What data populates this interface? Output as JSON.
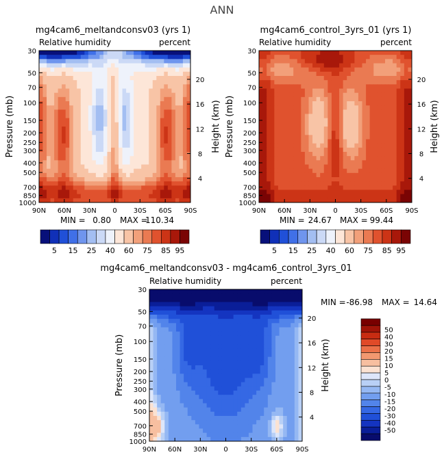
{
  "page_title": "ANN",
  "palettes": {
    "abs": [
      "#08107a",
      "#1030b8",
      "#2050d8",
      "#4070e8",
      "#6f95ee",
      "#a3bef2",
      "#cbd9f6",
      "#eef2fb",
      "#fde6d8",
      "#f8c4a6",
      "#f2a07a",
      "#ea7a52",
      "#e0522e",
      "#cc3416",
      "#a8180a",
      "#7a0404"
    ],
    "diff": [
      "#080c6c",
      "#0a1e98",
      "#1434c0",
      "#2050d8",
      "#3568e4",
      "#5284ea",
      "#729eef",
      "#95b8f3",
      "#b9d0f6",
      "#dde6fa",
      "#fbe2d2",
      "#f7bfa0",
      "#f29870",
      "#eb7048",
      "#e04a28",
      "#c82c12",
      "#a01408",
      "#780000"
    ]
  },
  "chart_data": [
    {
      "type": "heatmap",
      "title": "mg4cam6_meltandconsv03 (yrs 1)",
      "subtitle_left": "Relative humidity",
      "subtitle_right": "percent",
      "ylabel": "Pressure (mb)",
      "ylabel_right": "Height (km)",
      "x_ticks": [
        "90N",
        "60N",
        "30N",
        "0",
        "30S",
        "60S",
        "90S"
      ],
      "y_ticks": [
        "30",
        "50",
        "70",
        "100",
        "150",
        "200",
        "250",
        "300",
        "400",
        "500",
        "700",
        "850",
        "1000"
      ],
      "height_ticks": [
        "20",
        "16",
        "12",
        "8",
        "4"
      ],
      "stats": {
        "min_label": "MIN =",
        "min": "0.80",
        "max_label": "MAX =",
        "max": "110.34"
      },
      "colorbar_labels": [
        "5",
        "15",
        "25",
        "40",
        "60",
        "75",
        "85",
        "95"
      ],
      "legend_orientation": "horizontal",
      "palette": "abs",
      "levels": [
        0,
        5,
        10,
        15,
        20,
        25,
        30,
        40,
        50,
        60,
        70,
        75,
        80,
        85,
        90,
        95
      ]
    },
    {
      "type": "heatmap",
      "title": "mg4cam6_control_3yrs_01 (yrs 1)",
      "subtitle_left": "Relative humidity",
      "subtitle_right": "percent",
      "ylabel": "Pressure (mb)",
      "ylabel_right": "Height (km)",
      "x_ticks": [
        "90N",
        "60N",
        "30N",
        "0",
        "30S",
        "60S",
        "90S"
      ],
      "y_ticks": [
        "30",
        "50",
        "70",
        "100",
        "150",
        "200",
        "250",
        "300",
        "400",
        "500",
        "700",
        "850",
        "1000"
      ],
      "height_ticks": [
        "20",
        "16",
        "12",
        "8",
        "4"
      ],
      "stats": {
        "min_label": "MIN =",
        "min": "24.67",
        "max_label": "MAX =",
        "max": "99.44"
      },
      "colorbar_labels": [
        "5",
        "15",
        "25",
        "40",
        "60",
        "75",
        "85",
        "95"
      ],
      "legend_orientation": "horizontal",
      "palette": "abs",
      "levels": [
        0,
        5,
        10,
        15,
        20,
        25,
        30,
        40,
        50,
        60,
        70,
        75,
        80,
        85,
        90,
        95
      ]
    },
    {
      "type": "heatmap",
      "title": "mg4cam6_meltandconsv03 - mg4cam6_control_3yrs_01",
      "subtitle_left": "Relative humidity",
      "subtitle_right": "percent",
      "ylabel": "Pressure (mb)",
      "ylabel_right": "Height (km)",
      "x_ticks": [
        "90N",
        "60N",
        "30N",
        "0",
        "30S",
        "60S",
        "90S"
      ],
      "y_ticks": [
        "30",
        "50",
        "70",
        "100",
        "150",
        "200",
        "250",
        "300",
        "400",
        "500",
        "700",
        "850",
        "1000"
      ],
      "height_ticks": [
        "20",
        "16",
        "12",
        "8",
        "4"
      ],
      "stats": {
        "min_label": "MIN =",
        "min": "-86.98",
        "max_label": "MAX =",
        "max": "14.64"
      },
      "colorbar_labels": [
        "50",
        "40",
        "30",
        "20",
        "15",
        "10",
        "5",
        "0",
        "-5",
        "-10",
        "-15",
        "-20",
        "-30",
        "-40",
        "-50"
      ],
      "legend_orientation": "vertical",
      "palette": "diff",
      "levels": [
        -60,
        -50,
        -40,
        -30,
        -20,
        -15,
        -10,
        -5,
        -2,
        0,
        2,
        5,
        10,
        15,
        20,
        30,
        40,
        50
      ]
    }
  ]
}
